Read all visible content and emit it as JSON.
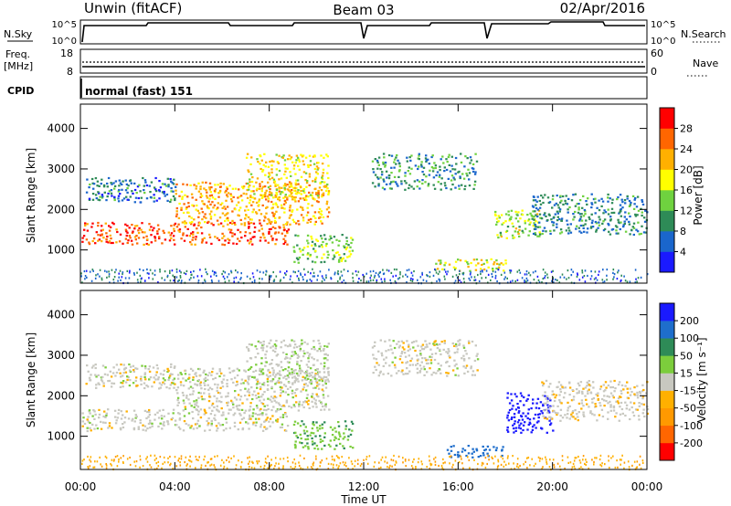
{
  "header": {
    "station": "Unwin (fitACF)",
    "beam": "Beam 03",
    "date": "02/Apr/2016"
  },
  "strips": {
    "nsky_label": "N.Sky",
    "nsky_ticks": [
      "10^5",
      "10^0"
    ],
    "nsearch_label": "N.Search",
    "nsearch_ticks": [
      "10^5",
      "10^0"
    ],
    "freq_label": "Freq.",
    "freq_unit": "[MHz]",
    "freq_ticks": [
      "18",
      "8"
    ],
    "nave_label": "Nave",
    "nave_ticks": [
      "60",
      "0"
    ],
    "cpid_label": "CPID",
    "cpid_value": "normal (fast) 151"
  },
  "chart_data": [
    {
      "type": "heatmap",
      "title": "",
      "xlabel": "Time UT",
      "ylabel": "Slant Range [km]",
      "x_ticks": [
        "00:00",
        "04:00",
        "08:00",
        "12:00",
        "16:00",
        "20:00",
        "00:00"
      ],
      "y_ticks": [
        1000,
        2000,
        3000,
        4000
      ],
      "xlim": [
        0,
        24
      ],
      "ylim": [
        180,
        4600
      ],
      "colorbar": {
        "label": "Power [dB]",
        "ticks": [
          "28",
          "24",
          "20",
          "16",
          "12",
          "8",
          "4"
        ],
        "colors": [
          "#1a1aff",
          "#1a66cc",
          "#2e8b57",
          "#6fd23f",
          "#ffff00",
          "#ffb000",
          "#ff6600",
          "#ff0000"
        ]
      },
      "regions": [
        {
          "t0": 0.0,
          "t1": 8.8,
          "r0": 1150,
          "r1": 1700,
          "v": 27
        },
        {
          "t0": 4.0,
          "t1": 10.5,
          "r0": 1650,
          "r1": 2700,
          "v": 22
        },
        {
          "t0": 7.0,
          "t1": 10.5,
          "r0": 2300,
          "r1": 3400,
          "v": 19
        },
        {
          "t0": 0.2,
          "t1": 4.0,
          "r0": 2200,
          "r1": 2800,
          "v": 8
        },
        {
          "t0": 9.0,
          "t1": 11.5,
          "r0": 700,
          "r1": 1400,
          "v": 14
        },
        {
          "t0": 12.3,
          "t1": 16.8,
          "r0": 2500,
          "r1": 3400,
          "v": 10
        },
        {
          "t0": 15.0,
          "t1": 18.0,
          "r0": 500,
          "r1": 800,
          "v": 18
        },
        {
          "t0": 17.5,
          "t1": 19.5,
          "r0": 1300,
          "r1": 2000,
          "v": 16
        },
        {
          "t0": 19.0,
          "t1": 24.0,
          "r0": 1400,
          "r1": 2400,
          "v": 9
        },
        {
          "t0": 0.0,
          "t1": 24.0,
          "r0": 200,
          "r1": 550,
          "v": 7
        }
      ]
    },
    {
      "type": "heatmap",
      "title": "",
      "xlabel": "Time UT",
      "ylabel": "Slant Range [km]",
      "x_ticks": [
        "00:00",
        "04:00",
        "08:00",
        "12:00",
        "16:00",
        "20:00",
        "00:00"
      ],
      "y_ticks": [
        1000,
        2000,
        3000,
        4000
      ],
      "xlim": [
        0,
        24
      ],
      "ylim": [
        180,
        4600
      ],
      "colorbar": {
        "label": "Velocity [m s⁻¹]",
        "ticks": [
          "200",
          "100",
          "50",
          "15",
          "-15",
          "-50",
          "-100",
          "-200"
        ],
        "colors": [
          "#ff0000",
          "#ff6600",
          "#ff9900",
          "#ffb000",
          "#c8c8c0",
          "#7ccd3c",
          "#2e8b57",
          "#1e6ecc",
          "#1a1aff"
        ]
      },
      "regions": [
        {
          "t0": 0.0,
          "t1": 8.8,
          "r0": 1150,
          "r1": 1700,
          "v": 0
        },
        {
          "t0": 4.0,
          "t1": 10.5,
          "r0": 1650,
          "r1": 2700,
          "v": 0
        },
        {
          "t0": 7.0,
          "t1": 10.5,
          "r0": 2300,
          "r1": 3400,
          "v": 5
        },
        {
          "t0": 0.2,
          "t1": 4.0,
          "r0": 2200,
          "r1": 2800,
          "v": 0
        },
        {
          "t0": 9.0,
          "t1": 11.5,
          "r0": 700,
          "r1": 1400,
          "v": 40
        },
        {
          "t0": 12.3,
          "t1": 16.8,
          "r0": 2500,
          "r1": 3400,
          "v": 0
        },
        {
          "t0": 15.5,
          "t1": 18.0,
          "r0": 500,
          "r1": 800,
          "v": 150
        },
        {
          "t0": 18.0,
          "t1": 20.0,
          "r0": 1100,
          "r1": 2100,
          "v": 220
        },
        {
          "t0": 19.5,
          "t1": 24.0,
          "r0": 1400,
          "r1": 2400,
          "v": -5
        },
        {
          "t0": 0.0,
          "t1": 24.0,
          "r0": 200,
          "r1": 550,
          "v": -40
        }
      ]
    }
  ]
}
